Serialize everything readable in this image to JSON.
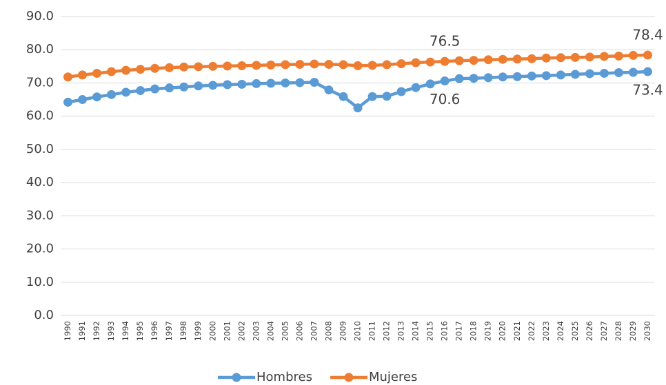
{
  "chart_data": {
    "type": "line",
    "categories": [
      "1990",
      "1991",
      "1992",
      "1993",
      "1994",
      "1995",
      "1996",
      "1997",
      "1998",
      "1999",
      "2000",
      "2001",
      "2002",
      "2003",
      "2004",
      "2005",
      "2006",
      "2007",
      "2008",
      "2009",
      "2010",
      "2011",
      "2012",
      "2013",
      "2014",
      "2015",
      "2016",
      "2017",
      "2018",
      "2019",
      "2020",
      "2021",
      "2022",
      "2023",
      "2024",
      "2025",
      "2026",
      "2027",
      "2028",
      "2029",
      "2030"
    ],
    "series": [
      {
        "name": "Hombres",
        "color": "#5b9bd5",
        "values": [
          64.2,
          65.0,
          65.8,
          66.5,
          67.2,
          67.7,
          68.2,
          68.5,
          68.8,
          69.1,
          69.3,
          69.5,
          69.6,
          69.8,
          69.9,
          70.0,
          70.1,
          70.2,
          67.9,
          65.9,
          62.5,
          65.9,
          66.0,
          67.4,
          68.6,
          69.7,
          70.6,
          71.3,
          71.4,
          71.6,
          71.8,
          71.9,
          72.1,
          72.2,
          72.4,
          72.6,
          72.8,
          72.9,
          73.1,
          73.2,
          73.4
        ],
        "value_labels": [
          null,
          null,
          null,
          null,
          null,
          null,
          null,
          null,
          null,
          null,
          null,
          null,
          null,
          null,
          null,
          null,
          null,
          null,
          null,
          null,
          null,
          null,
          null,
          null,
          null,
          null,
          "70.6",
          null,
          null,
          null,
          null,
          null,
          null,
          null,
          null,
          null,
          null,
          null,
          null,
          null,
          "73.4"
        ]
      },
      {
        "name": "Mujeres",
        "color": "#ed7d31",
        "values": [
          71.8,
          72.4,
          72.9,
          73.4,
          73.8,
          74.1,
          74.4,
          74.6,
          74.8,
          74.9,
          75.0,
          75.1,
          75.2,
          75.3,
          75.4,
          75.5,
          75.6,
          75.7,
          75.6,
          75.5,
          75.2,
          75.3,
          75.5,
          75.8,
          76.1,
          76.3,
          76.5,
          76.7,
          76.8,
          77.0,
          77.1,
          77.2,
          77.3,
          77.5,
          77.6,
          77.7,
          77.8,
          78.0,
          78.1,
          78.3,
          78.4
        ],
        "value_labels": [
          null,
          null,
          null,
          null,
          null,
          null,
          null,
          null,
          null,
          null,
          null,
          null,
          null,
          null,
          null,
          null,
          null,
          null,
          null,
          null,
          null,
          null,
          null,
          null,
          null,
          null,
          "76.5",
          null,
          null,
          null,
          null,
          null,
          null,
          null,
          null,
          null,
          null,
          null,
          null,
          null,
          "78.4"
        ]
      }
    ],
    "ylim": [
      0,
      90
    ],
    "yticks": [
      {
        "value": 0,
        "label": "0.0"
      },
      {
        "value": 10,
        "label": "10.0"
      },
      {
        "value": 20,
        "label": "20.0"
      },
      {
        "value": 30,
        "label": "30.0"
      },
      {
        "value": 40,
        "label": "40.0"
      },
      {
        "value": 50,
        "label": "50.0"
      },
      {
        "value": 60,
        "label": "60.0"
      },
      {
        "value": 70,
        "label": "70.0"
      },
      {
        "value": 80,
        "label": "80.0"
      },
      {
        "value": 90,
        "label": "90.0"
      }
    ],
    "grid": true,
    "legend": "bottom"
  }
}
